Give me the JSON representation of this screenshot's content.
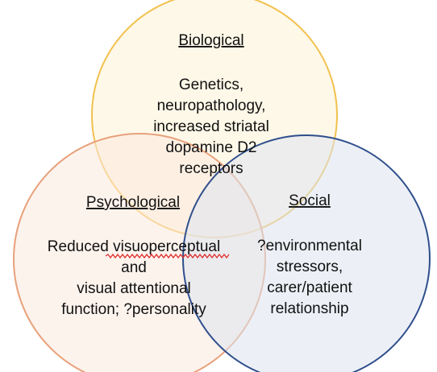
{
  "circles": {
    "biological": {
      "title": "Biological",
      "lines": [
        "Genetics,",
        "neuropathology,",
        "increased striatal",
        "dopamine D2",
        "receptors"
      ],
      "stroke": "#F2C14E",
      "fill": "#FDF3D6"
    },
    "psychological": {
      "title": "Psychological",
      "lines": [
        "Reduced visuoperceptual",
        "and",
        "visual attentional",
        "function; ?personality"
      ],
      "stroke": "#E8A07A",
      "fill": "#FBE9DF"
    },
    "social": {
      "title": "Social",
      "lines": [
        "?environmental",
        "stressors,",
        "carer/patient",
        "relationship"
      ],
      "stroke": "#2F4E8C",
      "fill": "#DCE3EF"
    }
  },
  "spellcheck_color": "#E03030"
}
